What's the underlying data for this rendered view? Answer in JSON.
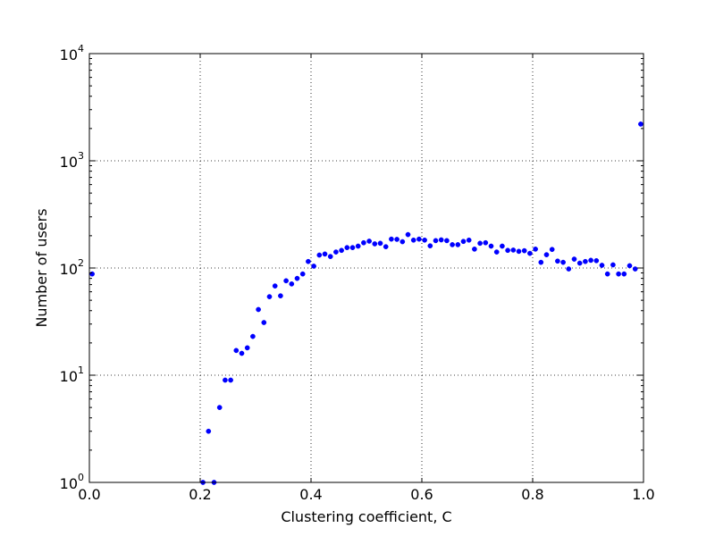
{
  "chart_data": {
    "type": "scatter",
    "xlabel": "Clustering coefficient, C",
    "ylabel": "Number of users",
    "x_scale": "linear",
    "y_scale": "log",
    "xlim": [
      0.0,
      1.0
    ],
    "ylim": [
      1,
      10000
    ],
    "grid": true,
    "marker_color": "#0000ff",
    "x_ticks": [
      "0.0",
      "0.2",
      "0.4",
      "0.6",
      "0.8",
      "1.0"
    ],
    "y_ticks": [
      {
        "base": "10",
        "exp": "0"
      },
      {
        "base": "10",
        "exp": "1"
      },
      {
        "base": "10",
        "exp": "2"
      },
      {
        "base": "10",
        "exp": "3"
      },
      {
        "base": "10",
        "exp": "4"
      }
    ],
    "series": [
      {
        "points": [
          [
            0.005,
            88
          ],
          [
            0.205,
            1
          ],
          [
            0.215,
            3
          ],
          [
            0.225,
            1
          ],
          [
            0.235,
            5
          ],
          [
            0.245,
            9
          ],
          [
            0.255,
            9
          ],
          [
            0.265,
            17
          ],
          [
            0.275,
            16
          ],
          [
            0.285,
            18
          ],
          [
            0.295,
            23
          ],
          [
            0.305,
            41
          ],
          [
            0.315,
            31
          ],
          [
            0.325,
            54
          ],
          [
            0.335,
            68
          ],
          [
            0.345,
            55
          ],
          [
            0.355,
            76
          ],
          [
            0.365,
            71
          ],
          [
            0.375,
            80
          ],
          [
            0.385,
            88
          ],
          [
            0.395,
            115
          ],
          [
            0.405,
            104
          ],
          [
            0.415,
            132
          ],
          [
            0.425,
            135
          ],
          [
            0.435,
            128
          ],
          [
            0.445,
            141
          ],
          [
            0.455,
            146
          ],
          [
            0.465,
            155
          ],
          [
            0.475,
            155
          ],
          [
            0.485,
            160
          ],
          [
            0.495,
            172
          ],
          [
            0.505,
            178
          ],
          [
            0.515,
            168
          ],
          [
            0.525,
            170
          ],
          [
            0.535,
            158
          ],
          [
            0.545,
            186
          ],
          [
            0.555,
            185
          ],
          [
            0.565,
            176
          ],
          [
            0.575,
            205
          ],
          [
            0.585,
            182
          ],
          [
            0.595,
            186
          ],
          [
            0.605,
            182
          ],
          [
            0.615,
            161
          ],
          [
            0.625,
            180
          ],
          [
            0.635,
            183
          ],
          [
            0.645,
            180
          ],
          [
            0.655,
            165
          ],
          [
            0.665,
            165
          ],
          [
            0.675,
            177
          ],
          [
            0.685,
            182
          ],
          [
            0.695,
            150
          ],
          [
            0.705,
            170
          ],
          [
            0.715,
            172
          ],
          [
            0.725,
            160
          ],
          [
            0.735,
            141
          ],
          [
            0.745,
            160
          ],
          [
            0.755,
            146
          ],
          [
            0.765,
            147
          ],
          [
            0.775,
            143
          ],
          [
            0.785,
            145
          ],
          [
            0.795,
            137
          ],
          [
            0.805,
            150
          ],
          [
            0.815,
            113
          ],
          [
            0.825,
            133
          ],
          [
            0.835,
            149
          ],
          [
            0.845,
            116
          ],
          [
            0.855,
            113
          ],
          [
            0.865,
            98
          ],
          [
            0.875,
            121
          ],
          [
            0.885,
            111
          ],
          [
            0.895,
            115
          ],
          [
            0.905,
            118
          ],
          [
            0.915,
            117
          ],
          [
            0.925,
            106
          ],
          [
            0.935,
            88
          ],
          [
            0.945,
            107
          ],
          [
            0.955,
            88
          ],
          [
            0.965,
            88
          ],
          [
            0.975,
            105
          ],
          [
            0.985,
            98
          ],
          [
            0.995,
            2200
          ]
        ]
      }
    ]
  }
}
